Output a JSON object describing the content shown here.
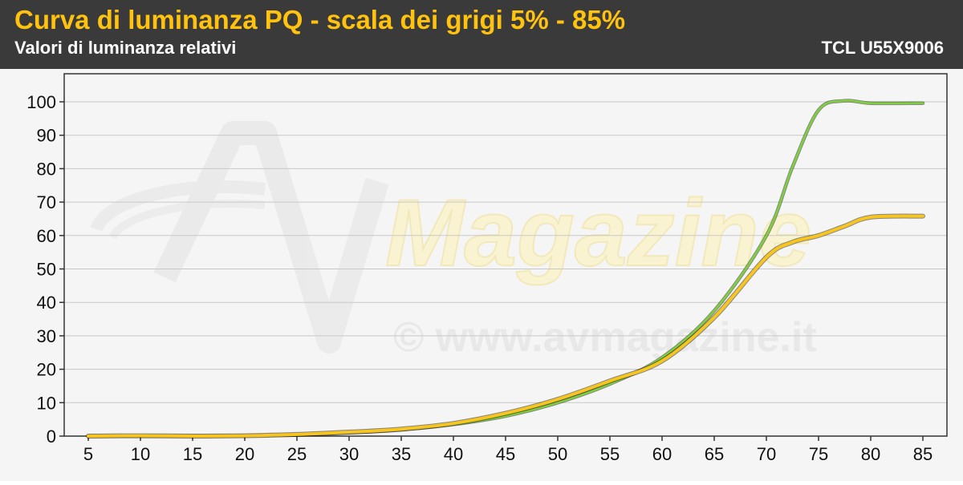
{
  "header": {
    "title": "Curva di luminanza PQ - scala dei grigi 5% - 85%",
    "subtitle": "Valori di luminanza relativi",
    "model": "TCL U55X9006"
  },
  "watermark": {
    "logo_text": "Magazine",
    "url_text": "© www.avmagazine.it"
  },
  "colors": {
    "header_bg": "#3a3a3a",
    "title": "#ffc20e",
    "reference_line": "#7fd13b",
    "measured_line": "#f7c51e",
    "grid": "#c8c8c8",
    "plot_bg": "#f5f5f5"
  },
  "chart_data": {
    "type": "line",
    "x": [
      5,
      10,
      15,
      20,
      25,
      30,
      35,
      40,
      45,
      50,
      55,
      60,
      65,
      70,
      72.5,
      75,
      77.5,
      80,
      85
    ],
    "xlim": [
      5,
      85
    ],
    "ylim": [
      0,
      100
    ],
    "xticks": [
      5,
      10,
      15,
      20,
      25,
      30,
      35,
      40,
      45,
      50,
      55,
      60,
      65,
      70,
      75,
      80,
      85
    ],
    "yticks": [
      0,
      10,
      20,
      30,
      40,
      50,
      60,
      70,
      80,
      90,
      100
    ],
    "grid": true,
    "legend": "none",
    "series": [
      {
        "values": [
          0,
          0,
          0,
          0.1,
          0.4,
          1.0,
          1.9,
          3.5,
          6.0,
          10.0,
          15.6,
          23.5,
          37.5,
          60.0,
          80.5,
          97.5,
          100.3,
          99.6,
          99.6
        ]
      },
      {
        "values": [
          0,
          0.1,
          0,
          0.1,
          0.5,
          1.2,
          2.1,
          3.8,
          6.8,
          11.0,
          16.5,
          22.5,
          35.5,
          53.5,
          58.0,
          60.0,
          62.8,
          65.5,
          65.8
        ]
      }
    ]
  }
}
